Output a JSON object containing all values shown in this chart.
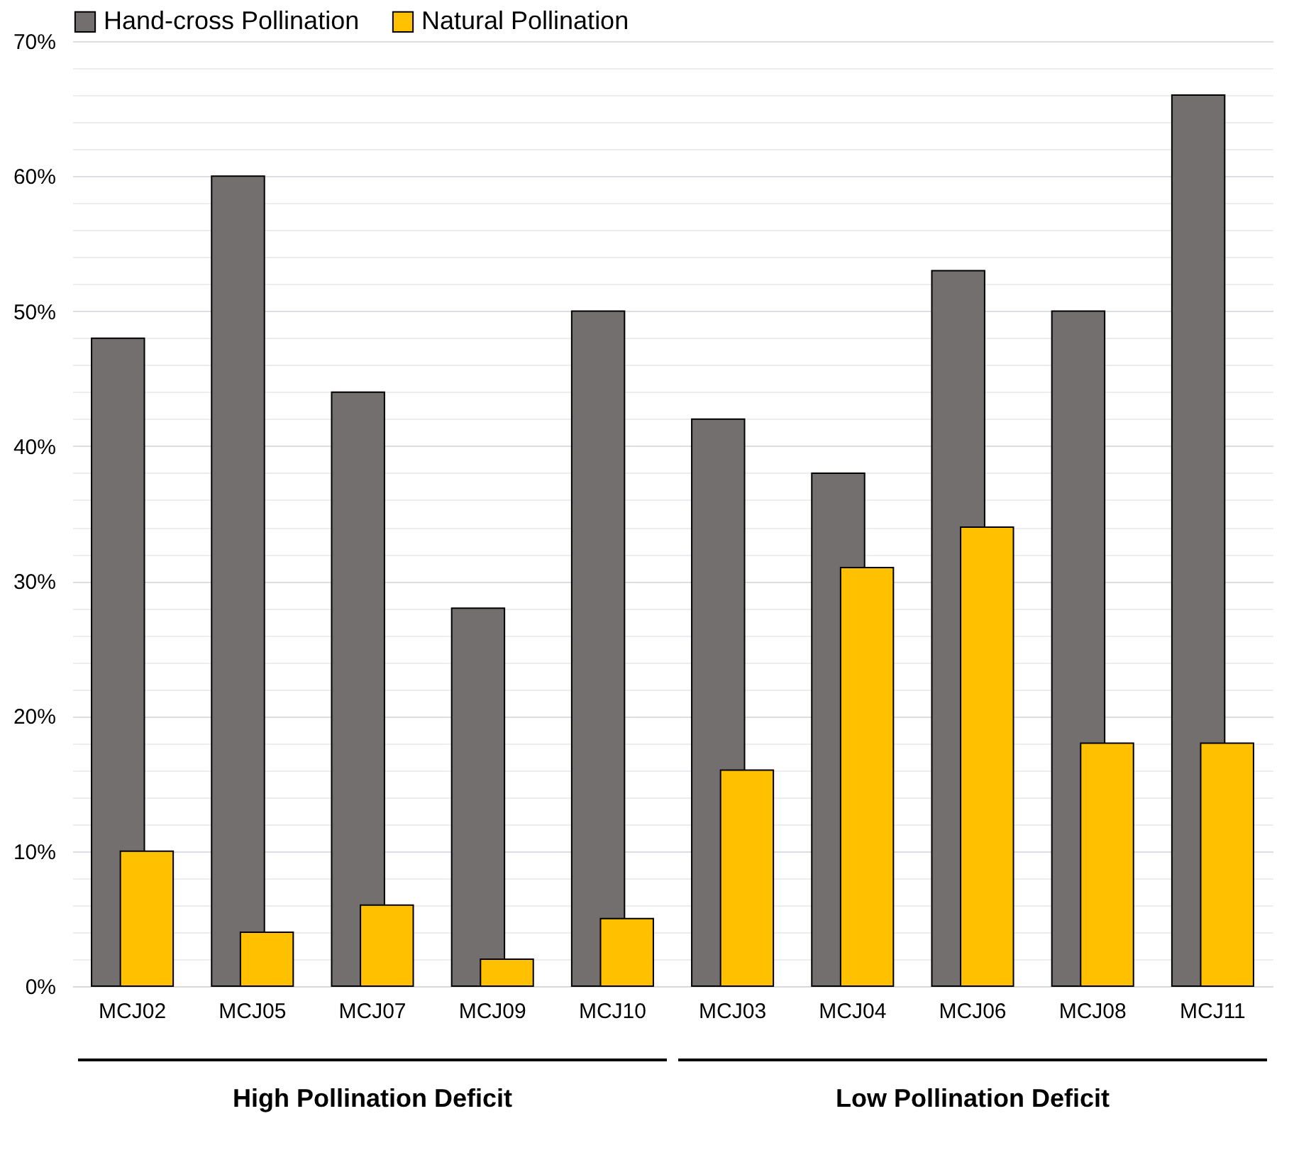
{
  "chart_data": {
    "type": "bar",
    "categories": [
      "MCJ02",
      "MCJ05",
      "MCJ07",
      "MCJ09",
      "MCJ10",
      "MCJ03",
      "MCJ04",
      "MCJ06",
      "MCJ08",
      "MCJ11"
    ],
    "series": [
      {
        "name": "Hand-cross Pollination",
        "color": "#736f6e",
        "values": [
          48,
          60,
          44,
          28,
          50,
          42,
          38,
          53,
          50,
          66
        ]
      },
      {
        "name": "Natural Pollination",
        "color": "#ffc000",
        "values": [
          10,
          4,
          6,
          2,
          5,
          16,
          31,
          34,
          18,
          18
        ]
      }
    ],
    "ylim": [
      0,
      70
    ],
    "yticks": [
      {
        "value": 0,
        "label": "0%"
      },
      {
        "value": 2,
        "label": null
      },
      {
        "value": 4,
        "label": null
      },
      {
        "value": 6,
        "label": null
      },
      {
        "value": 8,
        "label": null
      },
      {
        "value": 10,
        "label": "10%"
      },
      {
        "value": 12,
        "label": null
      },
      {
        "value": 14,
        "label": null
      },
      {
        "value": 16,
        "label": null
      },
      {
        "value": 18,
        "label": null
      },
      {
        "value": 20,
        "label": "20%"
      },
      {
        "value": 22,
        "label": null
      },
      {
        "value": 24,
        "label": null
      },
      {
        "value": 26,
        "label": null
      },
      {
        "value": 28,
        "label": null
      },
      {
        "value": 30,
        "label": "30%"
      },
      {
        "value": 32,
        "label": null
      },
      {
        "value": 34,
        "label": null
      },
      {
        "value": 36,
        "label": null
      },
      {
        "value": 38,
        "label": null
      },
      {
        "value": 40,
        "label": "40%"
      },
      {
        "value": 42,
        "label": null
      },
      {
        "value": 44,
        "label": null
      },
      {
        "value": 46,
        "label": null
      },
      {
        "value": 48,
        "label": null
      },
      {
        "value": 50,
        "label": "50%"
      },
      {
        "value": 52,
        "label": null
      },
      {
        "value": 54,
        "label": null
      },
      {
        "value": 56,
        "label": null
      },
      {
        "value": 58,
        "label": null
      },
      {
        "value": 60,
        "label": "60%"
      },
      {
        "value": 62,
        "label": null
      },
      {
        "value": 64,
        "label": null
      },
      {
        "value": 66,
        "label": null
      },
      {
        "value": 68,
        "label": null
      },
      {
        "value": 70,
        "label": "70%"
      }
    ],
    "grid": "y",
    "legend": "top",
    "annotations": [
      "High Pollination Deficit",
      "Low Pollination Deficit"
    ]
  }
}
